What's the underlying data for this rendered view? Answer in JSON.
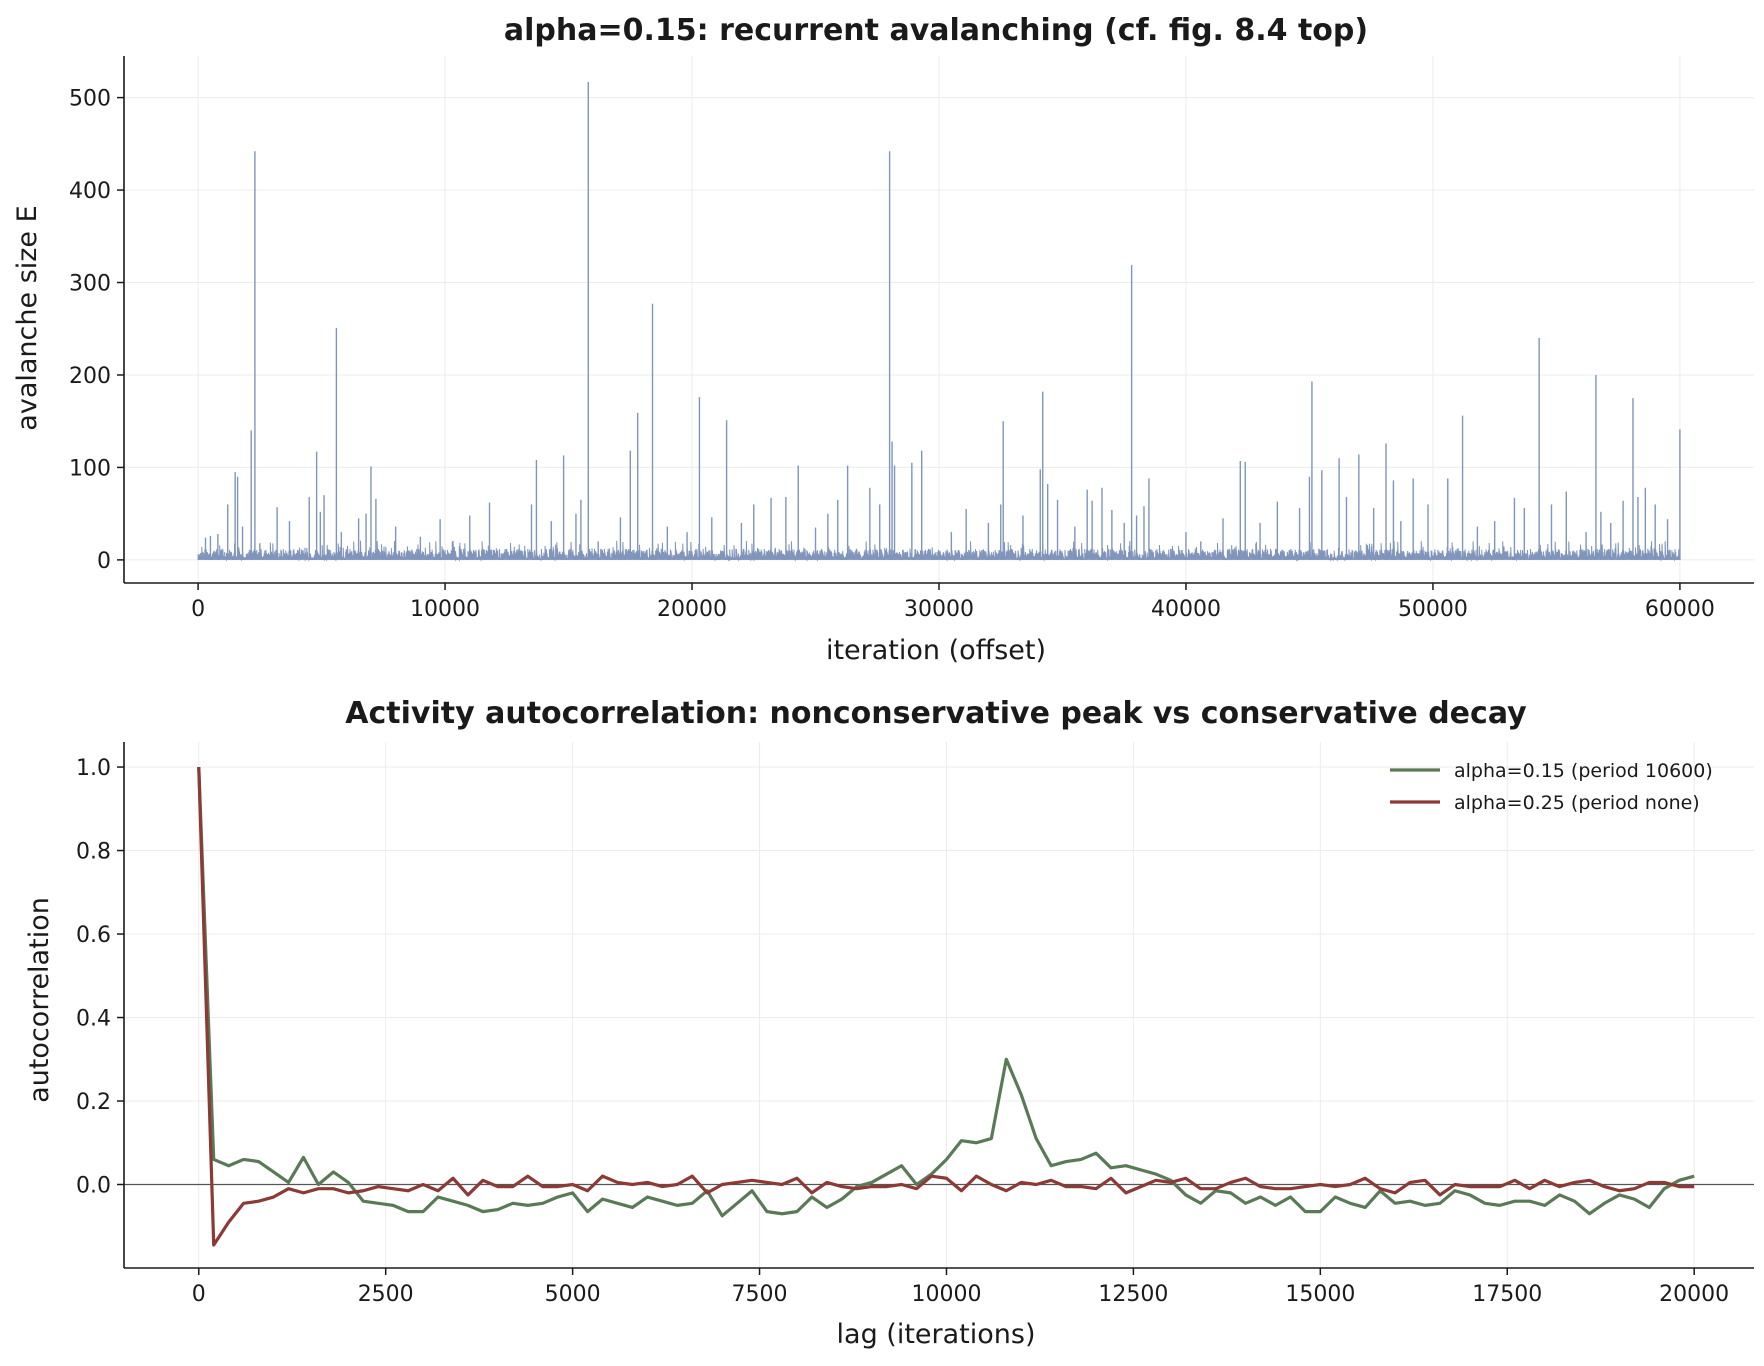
{
  "chart_data": [
    {
      "type": "line",
      "title": "alpha=0.15: recurrent avalanching (cf. fig. 8.4 top)",
      "xlabel": "iteration (offset)",
      "ylabel": "avalanche size E",
      "xlim": [
        -3000,
        63000
      ],
      "ylim": [
        -25,
        545
      ],
      "xticks": [
        0,
        10000,
        20000,
        30000,
        40000,
        50000,
        60000
      ],
      "yticks": [
        0,
        100,
        200,
        300,
        400,
        500
      ],
      "grid": true,
      "color": "#7f95bb",
      "baseline_range": [
        1,
        12
      ],
      "spikes": [
        [
          300,
          24
        ],
        [
          500,
          26
        ],
        [
          800,
          28
        ],
        [
          1200,
          60
        ],
        [
          1500,
          95
        ],
        [
          1600,
          90
        ],
        [
          1800,
          36
        ],
        [
          2150,
          140
        ],
        [
          2300,
          442
        ],
        [
          2500,
          18
        ],
        [
          3200,
          57
        ],
        [
          3700,
          42
        ],
        [
          4500,
          68
        ],
        [
          4800,
          117
        ],
        [
          4950,
          52
        ],
        [
          5100,
          70
        ],
        [
          5600,
          251
        ],
        [
          5800,
          30
        ],
        [
          6500,
          45
        ],
        [
          6800,
          50
        ],
        [
          7000,
          101
        ],
        [
          7200,
          66
        ],
        [
          8000,
          36
        ],
        [
          9000,
          25
        ],
        [
          9800,
          44
        ],
        [
          10300,
          20
        ],
        [
          11000,
          48
        ],
        [
          11800,
          62
        ],
        [
          13500,
          60
        ],
        [
          13700,
          108
        ],
        [
          14300,
          42
        ],
        [
          14800,
          113
        ],
        [
          15300,
          50
        ],
        [
          15500,
          65
        ],
        [
          15800,
          517
        ],
        [
          16200,
          20
        ],
        [
          17100,
          46
        ],
        [
          17500,
          118
        ],
        [
          17800,
          159
        ],
        [
          18400,
          277
        ],
        [
          19000,
          36
        ],
        [
          19800,
          30
        ],
        [
          20300,
          176
        ],
        [
          20800,
          46
        ],
        [
          21400,
          151
        ],
        [
          22000,
          40
        ],
        [
          22500,
          60
        ],
        [
          23200,
          67
        ],
        [
          23800,
          68
        ],
        [
          24300,
          102
        ],
        [
          25000,
          35
        ],
        [
          25500,
          50
        ],
        [
          25900,
          65
        ],
        [
          26300,
          102
        ],
        [
          27200,
          78
        ],
        [
          27600,
          60
        ],
        [
          28000,
          442
        ],
        [
          28100,
          128
        ],
        [
          28200,
          102
        ],
        [
          28900,
          105
        ],
        [
          29300,
          118
        ],
        [
          30500,
          30
        ],
        [
          31100,
          55
        ],
        [
          32000,
          40
        ],
        [
          32500,
          60
        ],
        [
          32600,
          150
        ],
        [
          33400,
          48
        ],
        [
          34100,
          98
        ],
        [
          34200,
          182
        ],
        [
          34400,
          82
        ],
        [
          34800,
          65
        ],
        [
          35500,
          36
        ],
        [
          36000,
          76
        ],
        [
          36200,
          64
        ],
        [
          36600,
          78
        ],
        [
          37000,
          54
        ],
        [
          37500,
          40
        ],
        [
          37800,
          319
        ],
        [
          38000,
          48
        ],
        [
          38300,
          58
        ],
        [
          38500,
          88
        ],
        [
          40000,
          30
        ],
        [
          40600,
          20
        ],
        [
          41500,
          45
        ],
        [
          42200,
          107
        ],
        [
          42400,
          106
        ],
        [
          43000,
          40
        ],
        [
          43700,
          63
        ],
        [
          44600,
          56
        ],
        [
          45000,
          90
        ],
        [
          45100,
          193
        ],
        [
          45500,
          97
        ],
        [
          46200,
          110
        ],
        [
          46500,
          68
        ],
        [
          47000,
          114
        ],
        [
          47600,
          56
        ],
        [
          48100,
          126
        ],
        [
          48400,
          86
        ],
        [
          48700,
          42
        ],
        [
          49200,
          88
        ],
        [
          49800,
          60
        ],
        [
          50600,
          88
        ],
        [
          51200,
          156
        ],
        [
          51800,
          36
        ],
        [
          52500,
          42
        ],
        [
          53300,
          67
        ],
        [
          53700,
          56
        ],
        [
          54300,
          240
        ],
        [
          54800,
          60
        ],
        [
          55400,
          74
        ],
        [
          56200,
          30
        ],
        [
          56600,
          200
        ],
        [
          56800,
          52
        ],
        [
          57200,
          40
        ],
        [
          57700,
          64
        ],
        [
          58100,
          175
        ],
        [
          58300,
          68
        ],
        [
          58600,
          78
        ],
        [
          59000,
          60
        ],
        [
          59500,
          44
        ],
        [
          60000,
          141
        ]
      ]
    },
    {
      "type": "line",
      "title": "Activity autocorrelation: nonconservative peak vs conservative decay",
      "xlabel": "lag (iterations)",
      "ylabel": "autocorrelation",
      "xlim": [
        -1000,
        20800
      ],
      "ylim": [
        -0.2,
        1.06
      ],
      "xticks": [
        0,
        2500,
        5000,
        7500,
        10000,
        12500,
        15000,
        17500,
        20000
      ],
      "yticks": [
        0.0,
        0.2,
        0.4,
        0.6,
        0.8,
        1.0
      ],
      "ytick_labels": [
        "0.0",
        "0.2",
        "0.4",
        "0.6",
        "0.8",
        "1.0"
      ],
      "grid": true,
      "legend_position": "top-right",
      "zero_line": true,
      "x_step": 200,
      "series": [
        {
          "name": "alpha=0.15 (period 10600)",
          "color": "#5a7a57",
          "values": [
            1.0,
            0.06,
            0.045,
            0.06,
            0.055,
            0.03,
            0.005,
            0.065,
            0.0,
            0.03,
            0.005,
            -0.04,
            -0.045,
            -0.05,
            -0.065,
            -0.065,
            -0.03,
            -0.04,
            -0.05,
            -0.065,
            -0.06,
            -0.045,
            -0.05,
            -0.045,
            -0.03,
            -0.02,
            -0.065,
            -0.035,
            -0.045,
            -0.055,
            -0.03,
            -0.04,
            -0.05,
            -0.045,
            -0.015,
            -0.075,
            -0.045,
            -0.015,
            -0.065,
            -0.07,
            -0.065,
            -0.03,
            -0.055,
            -0.035,
            -0.005,
            0.005,
            0.025,
            0.045,
            0.0,
            0.025,
            0.06,
            0.105,
            0.1,
            0.11,
            0.3,
            0.215,
            0.11,
            0.045,
            0.055,
            0.06,
            0.075,
            0.04,
            0.045,
            0.035,
            0.025,
            0.01,
            -0.025,
            -0.045,
            -0.015,
            -0.02,
            -0.045,
            -0.03,
            -0.05,
            -0.03,
            -0.065,
            -0.065,
            -0.03,
            -0.045,
            -0.055,
            -0.015,
            -0.045,
            -0.04,
            -0.05,
            -0.045,
            -0.015,
            -0.025,
            -0.045,
            -0.05,
            -0.04,
            -0.04,
            -0.05,
            -0.025,
            -0.04,
            -0.07,
            -0.045,
            -0.025,
            -0.035,
            -0.055,
            -0.01,
            0.01,
            0.02
          ]
        },
        {
          "name": "alpha=0.25 (period none)",
          "color": "#8b3a35",
          "values": [
            1.0,
            -0.145,
            -0.09,
            -0.045,
            -0.04,
            -0.03,
            -0.01,
            -0.02,
            -0.01,
            -0.01,
            -0.02,
            -0.015,
            -0.005,
            -0.01,
            -0.015,
            0.0,
            -0.015,
            0.015,
            -0.025,
            0.01,
            -0.005,
            -0.005,
            0.02,
            -0.005,
            -0.005,
            0.0,
            -0.015,
            0.02,
            0.005,
            0.0,
            0.005,
            -0.005,
            0.0,
            0.02,
            -0.02,
            0.0,
            0.005,
            0.01,
            0.005,
            0.0,
            0.015,
            -0.02,
            0.005,
            -0.005,
            -0.01,
            -0.005,
            -0.005,
            0.0,
            -0.01,
            0.02,
            0.015,
            -0.015,
            0.02,
            0.0,
            -0.015,
            0.005,
            0.0,
            0.01,
            -0.005,
            -0.005,
            -0.01,
            0.015,
            -0.02,
            -0.005,
            0.01,
            0.005,
            0.015,
            -0.01,
            -0.01,
            0.005,
            0.015,
            -0.005,
            -0.01,
            -0.01,
            -0.005,
            0.0,
            -0.005,
            0.0,
            0.015,
            -0.01,
            -0.02,
            0.005,
            0.01,
            -0.025,
            0.0,
            -0.005,
            -0.005,
            -0.005,
            0.01,
            -0.01,
            0.01,
            -0.005,
            0.005,
            0.01,
            -0.005,
            -0.015,
            -0.01,
            0.005,
            0.005,
            -0.005,
            -0.005
          ]
        }
      ]
    }
  ]
}
